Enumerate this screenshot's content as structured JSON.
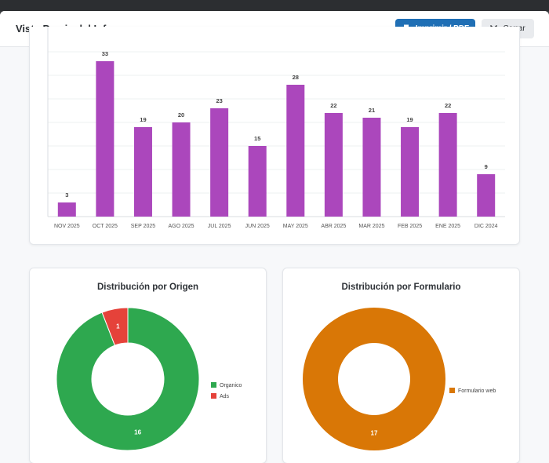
{
  "modal": {
    "title": "Vista Previa del Informe",
    "print_label": "Imprimir / PDF",
    "close_label": "Cerrar"
  },
  "colors": {
    "bar": "#ab47bc",
    "organico": "#2ea84f",
    "ads": "#e5423a",
    "formulario": "#d97706",
    "primary_button": "#1f6fb5"
  },
  "icons": {
    "print": "printer-icon",
    "close": "close-icon"
  },
  "chart_data": [
    {
      "type": "bar",
      "categories": [
        "NOV 2025",
        "OCT 2025",
        "SEP 2025",
        "AGO 2025",
        "JUL 2025",
        "JUN 2025",
        "MAY 2025",
        "ABR 2025",
        "MAR 2025",
        "FEB 2025",
        "ENE 2025",
        "DIC 2024"
      ],
      "values": [
        3,
        33,
        19,
        20,
        23,
        15,
        28,
        22,
        21,
        19,
        22,
        9
      ],
      "ylim": [
        0,
        35
      ],
      "grid": true
    },
    {
      "type": "pie",
      "title": "Distribución por Origen",
      "labels": [
        "Organico",
        "Ads"
      ],
      "values": [
        16,
        1
      ],
      "legend": "right"
    },
    {
      "type": "pie",
      "title": "Distribución por Formulario",
      "labels": [
        "Formulario web"
      ],
      "values": [
        17
      ],
      "legend": "right"
    }
  ]
}
